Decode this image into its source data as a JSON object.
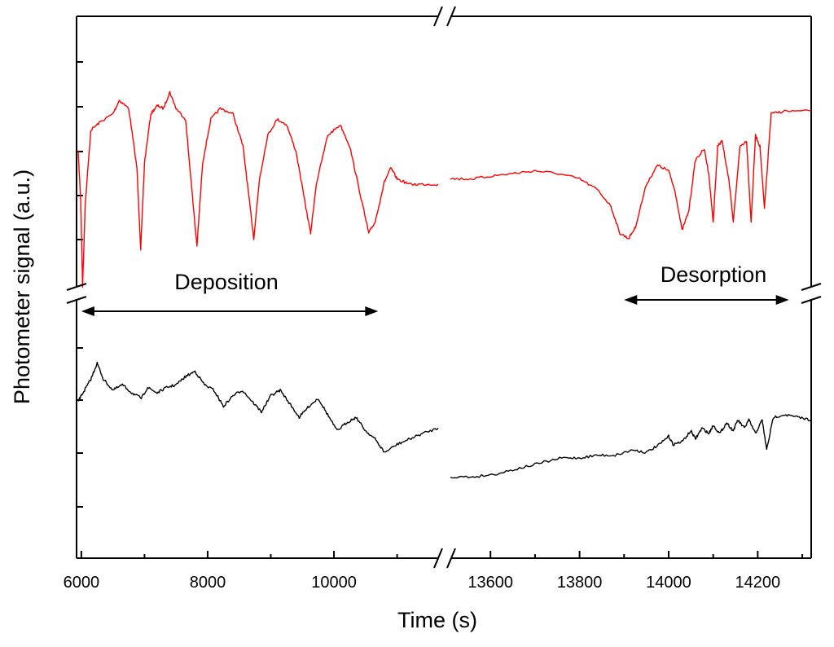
{
  "chart_data": {
    "type": "line",
    "title": "",
    "xlabel": "Time (s)",
    "ylabel": "Photometer signal (a.u.)",
    "axis_break": true,
    "x_segments": [
      {
        "xlim": [
          5950,
          11650
        ],
        "ticks": [
          6000,
          8000,
          10000
        ],
        "minor_ticks": [
          7000,
          9000,
          11000
        ],
        "tick_labels": [
          "6000",
          "8000",
          "10000"
        ]
      },
      {
        "xlim": [
          13510,
          14320
        ],
        "ticks": [
          13600,
          13800,
          14000,
          14200
        ],
        "minor_ticks": [
          13700,
          13900,
          14100,
          14300
        ],
        "tick_labels": [
          "13600",
          "13800",
          "14000",
          "14200"
        ]
      }
    ],
    "ylim": [
      0,
      10
    ],
    "grid": false,
    "colors": {
      "red_series": "#ff0000",
      "black_series": "#000000"
    },
    "annotations": [
      {
        "text": "Deposition",
        "arrow_x_range": [
          6000,
          10700
        ]
      },
      {
        "text": "Desorption",
        "arrow_x_range": [
          13900,
          14270
        ]
      }
    ],
    "series": [
      {
        "name": "red",
        "color": "#ff0000",
        "segments": [
          [
            [
              5950,
              7.5
            ],
            [
              5990,
              6.6
            ],
            [
              6020,
              5.0
            ],
            [
              6060,
              6.5
            ],
            [
              6150,
              7.9
            ],
            [
              6300,
              8.05
            ],
            [
              6500,
              8.2
            ],
            [
              6600,
              8.45
            ],
            [
              6750,
              8.3
            ],
            [
              6880,
              7.2
            ],
            [
              6940,
              5.7
            ],
            [
              7000,
              7.3
            ],
            [
              7100,
              8.2
            ],
            [
              7200,
              8.35
            ],
            [
              7300,
              8.3
            ],
            [
              7400,
              8.6
            ],
            [
              7500,
              8.3
            ],
            [
              7650,
              8.1
            ],
            [
              7750,
              6.8
            ],
            [
              7830,
              5.75
            ],
            [
              7920,
              7.3
            ],
            [
              8050,
              8.1
            ],
            [
              8200,
              8.3
            ],
            [
              8400,
              8.2
            ],
            [
              8560,
              7.6
            ],
            [
              8660,
              6.6
            ],
            [
              8730,
              5.9
            ],
            [
              8820,
              7.0
            ],
            [
              8950,
              7.8
            ],
            [
              9100,
              8.1
            ],
            [
              9250,
              8.0
            ],
            [
              9400,
              7.5
            ],
            [
              9550,
              6.5
            ],
            [
              9630,
              6.0
            ],
            [
              9720,
              6.9
            ],
            [
              9900,
              7.8
            ],
            [
              10100,
              8.0
            ],
            [
              10250,
              7.6
            ],
            [
              10400,
              6.8
            ],
            [
              10550,
              6.0
            ],
            [
              10650,
              6.2
            ],
            [
              10800,
              6.95
            ],
            [
              10900,
              7.2
            ],
            [
              11000,
              7.0
            ],
            [
              11200,
              6.9
            ],
            [
              11400,
              6.9
            ],
            [
              11650,
              6.9
            ]
          ],
          [
            [
              13510,
              7.0
            ],
            [
              13560,
              7.0
            ],
            [
              13600,
              7.05
            ],
            [
              13650,
              7.1
            ],
            [
              13700,
              7.15
            ],
            [
              13750,
              7.1
            ],
            [
              13800,
              7.0
            ],
            [
              13840,
              6.8
            ],
            [
              13870,
              6.5
            ],
            [
              13890,
              6.0
            ],
            [
              13910,
              5.9
            ],
            [
              13925,
              6.1
            ],
            [
              13950,
              6.9
            ],
            [
              13975,
              7.25
            ],
            [
              14000,
              7.15
            ],
            [
              14015,
              6.75
            ],
            [
              14030,
              6.05
            ],
            [
              14045,
              6.4
            ],
            [
              14060,
              7.35
            ],
            [
              14080,
              7.55
            ],
            [
              14090,
              7.1
            ],
            [
              14100,
              6.2
            ],
            [
              14110,
              7.6
            ],
            [
              14120,
              7.7
            ],
            [
              14135,
              7.0
            ],
            [
              14145,
              6.2
            ],
            [
              14160,
              7.6
            ],
            [
              14175,
              7.7
            ],
            [
              14185,
              6.2
            ],
            [
              14195,
              7.8
            ],
            [
              14205,
              7.6
            ],
            [
              14215,
              6.45
            ],
            [
              14230,
              8.2
            ],
            [
              14260,
              8.25
            ],
            [
              14320,
              8.25
            ]
          ]
        ]
      },
      {
        "name": "black",
        "color": "#000000",
        "segments": [
          [
            [
              5950,
              2.9
            ],
            [
              6050,
              3.1
            ],
            [
              6150,
              3.3
            ],
            [
              6250,
              3.6
            ],
            [
              6350,
              3.3
            ],
            [
              6500,
              3.1
            ],
            [
              6650,
              3.2
            ],
            [
              6800,
              3.05
            ],
            [
              6950,
              2.95
            ],
            [
              7050,
              3.15
            ],
            [
              7200,
              3.05
            ],
            [
              7350,
              3.15
            ],
            [
              7500,
              3.2
            ],
            [
              7650,
              3.35
            ],
            [
              7800,
              3.45
            ],
            [
              7950,
              3.2
            ],
            [
              8100,
              3.1
            ],
            [
              8250,
              2.8
            ],
            [
              8400,
              3.0
            ],
            [
              8550,
              3.1
            ],
            [
              8700,
              2.9
            ],
            [
              8850,
              2.7
            ],
            [
              9000,
              3.0
            ],
            [
              9150,
              3.1
            ],
            [
              9300,
              2.85
            ],
            [
              9450,
              2.6
            ],
            [
              9600,
              2.8
            ],
            [
              9750,
              2.95
            ],
            [
              9900,
              2.65
            ],
            [
              10050,
              2.35
            ],
            [
              10200,
              2.5
            ],
            [
              10350,
              2.6
            ],
            [
              10500,
              2.35
            ],
            [
              10650,
              2.2
            ],
            [
              10800,
              1.95
            ],
            [
              11000,
              2.1
            ],
            [
              11200,
              2.2
            ],
            [
              11400,
              2.3
            ],
            [
              11650,
              2.4
            ]
          ],
          [
            [
              13510,
              1.5
            ],
            [
              13560,
              1.5
            ],
            [
              13610,
              1.55
            ],
            [
              13660,
              1.65
            ],
            [
              13710,
              1.75
            ],
            [
              13760,
              1.85
            ],
            [
              13800,
              1.85
            ],
            [
              13840,
              1.9
            ],
            [
              13880,
              1.9
            ],
            [
              13920,
              2.0
            ],
            [
              13950,
              1.95
            ],
            [
              13980,
              2.1
            ],
            [
              14000,
              2.25
            ],
            [
              14010,
              2.1
            ],
            [
              14030,
              2.15
            ],
            [
              14050,
              2.35
            ],
            [
              14060,
              2.2
            ],
            [
              14075,
              2.4
            ],
            [
              14090,
              2.3
            ],
            [
              14100,
              2.45
            ],
            [
              14115,
              2.3
            ],
            [
              14130,
              2.5
            ],
            [
              14145,
              2.35
            ],
            [
              14155,
              2.55
            ],
            [
              14170,
              2.4
            ],
            [
              14180,
              2.55
            ],
            [
              14195,
              2.3
            ],
            [
              14210,
              2.55
            ],
            [
              14220,
              2.0
            ],
            [
              14235,
              2.6
            ],
            [
              14260,
              2.65
            ],
            [
              14290,
              2.6
            ],
            [
              14320,
              2.55
            ]
          ]
        ]
      }
    ]
  }
}
